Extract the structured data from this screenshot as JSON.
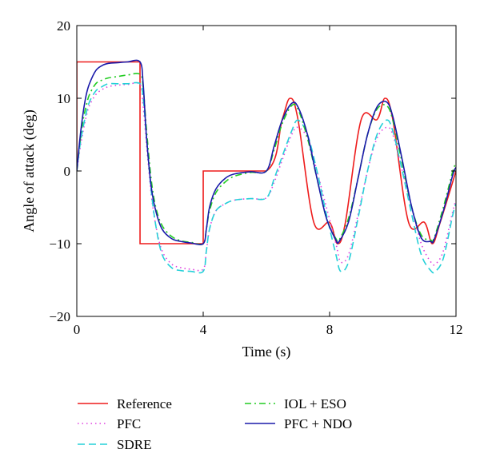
{
  "chart_data": {
    "type": "line",
    "title": "",
    "xlabel": "Time (s)",
    "ylabel": "Angle of attack (deg)",
    "xlim": [
      0,
      12
    ],
    "ylim": [
      -20,
      20
    ],
    "xticks": [
      0,
      4,
      8,
      12
    ],
    "yticks": [
      20,
      10,
      0,
      -10,
      -20
    ],
    "grid": false,
    "legend_position": "bottom, two columns",
    "series": [
      {
        "name": "Reference",
        "color": "#ee1c1c",
        "dash": "solid",
        "x": [
          0,
          0.001,
          2.0,
          2.001,
          4.0,
          4.001,
          6.0,
          6.5,
          6.75,
          7.0,
          7.5,
          8.0,
          8.25,
          8.5,
          9.0,
          9.5,
          9.75,
          10.0,
          10.5,
          11.0,
          11.25,
          11.5,
          12.0
        ],
        "values": [
          0,
          15,
          15,
          -10,
          -10,
          0,
          0,
          7.07,
          10,
          7.07,
          -7.07,
          -7.07,
          -10,
          -7.07,
          7.07,
          7.07,
          10,
          7.07,
          -7.07,
          -7.07,
          -10,
          -7.07,
          0
        ]
      },
      {
        "name": "PFC",
        "color": "#e040e0",
        "dash": "dotted",
        "x": [
          0,
          0.1,
          0.2,
          0.3,
          0.4,
          0.6,
          0.8,
          1.0,
          1.3,
          1.6,
          2.0,
          2.1,
          2.2,
          2.35,
          2.5,
          2.7,
          3.0,
          3.3,
          3.6,
          4.0,
          4.1,
          4.2,
          4.4,
          4.7,
          5.0,
          5.5,
          6.0,
          6.25,
          6.5,
          6.8,
          7.0,
          7.3,
          7.6,
          7.9,
          8.2,
          8.35,
          8.6,
          8.9,
          9.2,
          9.5,
          9.8,
          10.0,
          10.3,
          10.6,
          10.9,
          11.2,
          11.35,
          11.6,
          11.9,
          12.0
        ],
        "values": [
          0,
          3,
          5.5,
          7.5,
          9,
          10.5,
          11.2,
          11.6,
          11.8,
          11.9,
          11.9,
          9,
          4,
          -3,
          -7.5,
          -11,
          -12.8,
          -13.3,
          -13.5,
          -13.5,
          -11,
          -8,
          -5.5,
          -4.5,
          -4,
          -3.8,
          -3.7,
          -1.5,
          1.5,
          5,
          6,
          4.5,
          0,
          -5,
          -10,
          -12.5,
          -11.5,
          -6,
          0,
          4.5,
          6,
          5,
          0,
          -5,
          -10,
          -12.5,
          -12.8,
          -11,
          -5.5,
          -4
        ]
      },
      {
        "name": "SDRE",
        "color": "#25d0d8",
        "dash": "dashed",
        "x": [
          0,
          0.1,
          0.2,
          0.3,
          0.4,
          0.6,
          0.8,
          1.0,
          1.3,
          1.6,
          2.0,
          2.1,
          2.2,
          2.35,
          2.5,
          2.7,
          3.0,
          3.3,
          3.6,
          4.0,
          4.1,
          4.2,
          4.4,
          4.7,
          5.0,
          5.5,
          6.0,
          6.25,
          6.5,
          6.8,
          7.0,
          7.3,
          7.6,
          7.9,
          8.2,
          8.35,
          8.6,
          8.9,
          9.2,
          9.5,
          9.8,
          10.0,
          10.3,
          10.6,
          10.9,
          11.2,
          11.35,
          11.6,
          11.9,
          12.0
        ],
        "values": [
          0,
          3.5,
          6,
          8,
          9.5,
          11,
          11.6,
          12,
          12,
          12,
          12,
          10,
          5,
          -2.5,
          -7.5,
          -11.5,
          -13.3,
          -13.7,
          -13.8,
          -13.8,
          -11,
          -8,
          -5.5,
          -4.5,
          -4,
          -3.8,
          -3.7,
          -1,
          2,
          5.5,
          7,
          5,
          0,
          -6,
          -11.5,
          -13.8,
          -12.5,
          -6.5,
          0,
          5,
          7,
          5.5,
          0,
          -6,
          -11.5,
          -13.7,
          -13.8,
          -12,
          -6,
          -4.5
        ]
      },
      {
        "name": "IOL + ESO",
        "color": "#22cc22",
        "dash": "dashdot",
        "x": [
          0,
          0.1,
          0.2,
          0.3,
          0.4,
          0.6,
          0.8,
          1.0,
          1.3,
          1.6,
          2.0,
          2.1,
          2.2,
          2.35,
          2.5,
          2.7,
          3.0,
          3.3,
          3.6,
          4.0,
          4.1,
          4.2,
          4.4,
          4.7,
          5.0,
          5.5,
          6.0,
          6.25,
          6.5,
          6.8,
          7.0,
          7.3,
          7.6,
          7.9,
          8.2,
          8.3,
          8.6,
          8.9,
          9.2,
          9.5,
          9.8,
          10.0,
          10.3,
          10.6,
          10.9,
          11.2,
          11.3,
          11.6,
          11.9,
          12.0
        ],
        "values": [
          0,
          4,
          7,
          9,
          10.5,
          12,
          12.5,
          12.8,
          13,
          13.2,
          13.3,
          11.5,
          6,
          -1,
          -5,
          -7.5,
          -9,
          -9.6,
          -9.8,
          -10,
          -8,
          -5.5,
          -3,
          -1.5,
          -0.7,
          -0.2,
          0,
          3,
          6.5,
          9,
          8.5,
          4.5,
          -1,
          -6.5,
          -9.3,
          -9.5,
          -6.5,
          -1,
          5,
          8.5,
          9,
          7,
          1,
          -5,
          -8.8,
          -9.5,
          -9.3,
          -5,
          0,
          1
        ]
      },
      {
        "name": "PFC + NDO",
        "color": "#1a1aaa",
        "dash": "solid",
        "x": [
          0,
          0.1,
          0.2,
          0.3,
          0.4,
          0.6,
          0.8,
          1.0,
          1.3,
          1.6,
          2.0,
          2.1,
          2.2,
          2.35,
          2.5,
          2.7,
          3.0,
          3.3,
          3.6,
          4.0,
          4.1,
          4.2,
          4.4,
          4.7,
          5.0,
          5.5,
          6.0,
          6.25,
          6.5,
          6.8,
          7.0,
          7.3,
          7.6,
          7.9,
          8.2,
          8.3,
          8.6,
          8.9,
          9.2,
          9.5,
          9.8,
          10.0,
          10.3,
          10.6,
          10.9,
          11.2,
          11.3,
          11.6,
          11.9,
          12.0
        ],
        "values": [
          0,
          4.5,
          8,
          10.5,
          12,
          13.8,
          14.5,
          14.8,
          14.9,
          15,
          15,
          12,
          5,
          -2,
          -5.5,
          -8,
          -9.3,
          -9.7,
          -9.9,
          -10,
          -8,
          -5,
          -2.5,
          -1,
          -0.4,
          -0.1,
          0,
          3.5,
          7,
          9.3,
          8.8,
          5,
          -1,
          -6.5,
          -9.5,
          -9.7,
          -7,
          -1,
          5,
          8.8,
          9.5,
          7.5,
          1.5,
          -5,
          -9.2,
          -9.7,
          -9.5,
          -5.5,
          -0.5,
          0.5
        ]
      }
    ]
  }
}
